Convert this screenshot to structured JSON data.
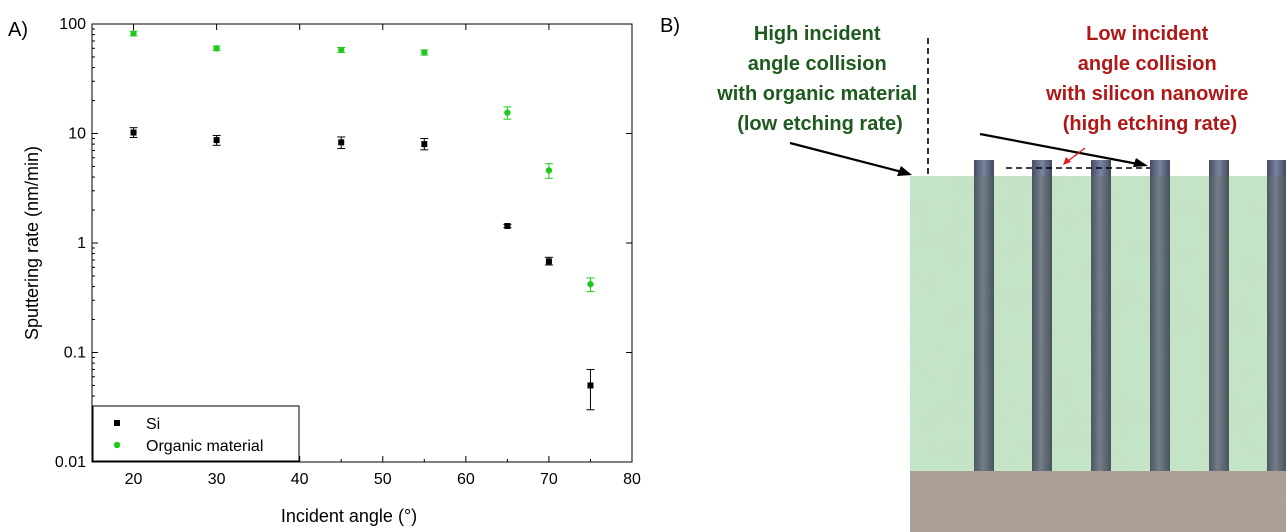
{
  "panel_a": {
    "label": "A)",
    "chart_data": {
      "type": "scatter",
      "xlabel": "Incident angle (°)",
      "ylabel": "Sputtering rate (nm/min)",
      "yscale": "log",
      "xlim": [
        15,
        80
      ],
      "ylim": [
        0.01,
        100
      ],
      "x_ticks": [
        20,
        30,
        40,
        50,
        60,
        70,
        80
      ],
      "y_ticks": [
        0.01,
        0.1,
        1,
        10,
        100
      ],
      "y_tick_labels": [
        "0.01",
        "0.1",
        "1",
        "10",
        "100"
      ],
      "legend_position": "bottom-left",
      "grid": false,
      "series": [
        {
          "name": "Si",
          "marker": "square",
          "color": "#000000",
          "x": [
            20,
            30,
            45,
            55,
            65,
            70,
            75
          ],
          "y": [
            10.2,
            8.7,
            8.3,
            8.0,
            1.43,
            0.68,
            0.05
          ],
          "err_low": [
            9.2,
            7.8,
            7.3,
            7.1,
            1.38,
            0.63,
            0.03
          ],
          "err_high": [
            11.3,
            9.6,
            9.3,
            9.0,
            1.48,
            0.74,
            0.07
          ]
        },
        {
          "name": "Organic material",
          "marker": "circle",
          "color": "#22c81e",
          "x": [
            20,
            30,
            45,
            55,
            65,
            70,
            75
          ],
          "y": [
            82,
            60,
            58,
            55,
            15.5,
            4.6,
            0.42
          ],
          "err_low": [
            78,
            57,
            55,
            52,
            13.5,
            3.9,
            0.36
          ],
          "err_high": [
            86,
            63,
            61,
            58,
            17.5,
            5.3,
            0.48
          ]
        }
      ]
    }
  },
  "panel_b": {
    "label": "B)",
    "left_annotation": [
      "High incident",
      "angle collision",
      "with organic material",
      "(low etching rate)"
    ],
    "right_annotation": [
      "Low incident",
      "angle collision",
      "with silicon nanowire",
      "(high etching rate)"
    ],
    "colors": {
      "organic": "#c4e2c6",
      "nanowire": "#56606f",
      "substrate": "#ad9f94",
      "left_text": "#1e5a1e",
      "right_text": "#b01818",
      "pointer": "#e21a1a"
    },
    "nanowire_count": 6
  }
}
